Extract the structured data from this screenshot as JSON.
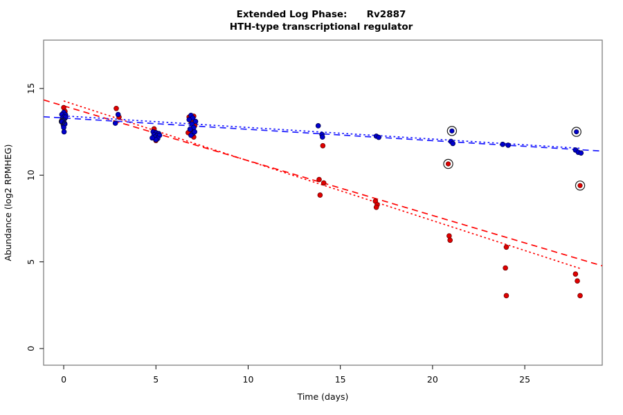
{
  "title": {
    "line1": "Extended Log Phase:      Rv2887",
    "line2": "HTH-type transcriptional regulator"
  },
  "chart_data": {
    "type": "scatter",
    "title": "Extended Log Phase: Rv2887",
    "subtitle": "HTH-type transcriptional regulator",
    "xlabel": "Time  (days)",
    "ylabel": "Abundance (log2 RPMHEG)",
    "x_ticks": [
      0,
      5,
      10,
      15,
      20,
      25
    ],
    "y_ticks": [
      0,
      5,
      10,
      15
    ],
    "xlim": [
      -1.09,
      29.2
    ],
    "ylim": [
      -0.96,
      17.79
    ],
    "grid": false,
    "legend": "none",
    "colors": {
      "red_point": "#e00000",
      "red_point_edge": "#6b0000",
      "blue_point": "#0000cd",
      "blue_point_edge": "#00004a",
      "red_line": "#ff0000",
      "blue_line": "#1a1aff",
      "outlier_ring": "#1a1a1a",
      "box": "#808080"
    },
    "series": [
      {
        "name": "red-points",
        "marker": "filled-circle",
        "color_key": "red_point",
        "points": [
          [
            0.0,
            13.9
          ],
          [
            0.07,
            13.68
          ],
          [
            2.85,
            13.85
          ],
          [
            3.0,
            13.35
          ],
          [
            4.9,
            12.67
          ],
          [
            5.0,
            12.0
          ],
          [
            6.8,
            13.35
          ],
          [
            7.05,
            13.4
          ],
          [
            6.9,
            13.1
          ],
          [
            7.1,
            12.85
          ],
          [
            6.75,
            12.45
          ],
          [
            7.05,
            12.2
          ],
          [
            6.95,
            12.6
          ],
          [
            14.05,
            11.7
          ],
          [
            13.85,
            9.75
          ],
          [
            14.1,
            9.55
          ],
          [
            13.9,
            8.85
          ],
          [
            16.9,
            8.5
          ],
          [
            17.0,
            8.3
          ],
          [
            16.95,
            8.15
          ],
          [
            20.9,
            6.5
          ],
          [
            20.95,
            6.25
          ],
          [
            24.0,
            5.85
          ],
          [
            23.95,
            4.65
          ],
          [
            24.0,
            3.05
          ],
          [
            27.75,
            4.3
          ],
          [
            27.85,
            3.9
          ],
          [
            28.0,
            3.05
          ]
        ]
      },
      {
        "name": "blue-points",
        "marker": "filled-circle",
        "color_key": "blue_point",
        "points": [
          [
            0.0,
            13.62
          ],
          [
            -0.1,
            13.5
          ],
          [
            0.1,
            13.48
          ],
          [
            0.02,
            13.38
          ],
          [
            -0.06,
            13.28
          ],
          [
            0.08,
            13.3
          ],
          [
            0.1,
            13.35
          ],
          [
            0.0,
            13.18
          ],
          [
            -0.1,
            13.08
          ],
          [
            0.04,
            13.0
          ],
          [
            -0.02,
            12.88
          ],
          [
            0.06,
            12.95
          ],
          [
            0.0,
            12.75
          ],
          [
            0.02,
            12.5
          ],
          [
            2.95,
            13.5
          ],
          [
            2.8,
            13.0
          ],
          [
            4.85,
            12.5
          ],
          [
            5.0,
            12.45
          ],
          [
            5.15,
            12.4
          ],
          [
            4.9,
            12.33
          ],
          [
            5.05,
            12.28
          ],
          [
            5.2,
            12.3
          ],
          [
            4.95,
            12.2
          ],
          [
            5.1,
            12.12
          ],
          [
            5.0,
            12.05
          ],
          [
            4.8,
            12.15
          ],
          [
            6.9,
            13.45
          ],
          [
            7.0,
            13.3
          ],
          [
            6.8,
            13.2
          ],
          [
            7.15,
            13.1
          ],
          [
            6.95,
            12.95
          ],
          [
            7.05,
            12.75
          ],
          [
            6.85,
            12.65
          ],
          [
            7.0,
            12.4
          ],
          [
            7.1,
            12.5
          ],
          [
            6.9,
            12.3
          ],
          [
            13.8,
            12.85
          ],
          [
            14.0,
            12.35
          ],
          [
            14.03,
            12.2
          ],
          [
            16.95,
            12.25
          ],
          [
            17.08,
            12.18
          ],
          [
            21.0,
            11.95
          ],
          [
            21.1,
            11.83
          ],
          [
            23.8,
            11.78
          ],
          [
            24.1,
            11.73
          ],
          [
            27.75,
            11.45
          ],
          [
            27.9,
            11.32
          ],
          [
            28.05,
            11.28
          ]
        ]
      },
      {
        "name": "red-circled-outliers",
        "marker": "circled-cross",
        "color_key": "red_point",
        "points": [
          [
            20.85,
            10.65
          ],
          [
            28.0,
            9.4
          ]
        ]
      },
      {
        "name": "blue-circled-outliers",
        "marker": "circled-cross",
        "color_key": "blue_point",
        "points": [
          [
            21.05,
            12.55
          ],
          [
            27.8,
            12.5
          ]
        ]
      },
      {
        "name": "open-circle-points",
        "marker": "open-circle",
        "color_key": "outlier_ring",
        "points": [
          [
            -0.08,
            13.1
          ]
        ]
      }
    ],
    "fit_lines": [
      {
        "name": "red-dashed-fit",
        "color_key": "red_line",
        "style": "dashed",
        "x1": -1.09,
        "y1": 14.34,
        "x2": 29.2,
        "y2": 4.77
      },
      {
        "name": "red-dotted-fit",
        "color_key": "red_line",
        "style": "dotted",
        "x1": 0,
        "y1": 14.28,
        "x2": 28,
        "y2": 4.62
      },
      {
        "name": "blue-dashed-fit",
        "color_key": "blue_line",
        "style": "dashed",
        "x1": -1.09,
        "y1": 13.37,
        "x2": 29.2,
        "y2": 11.39
      },
      {
        "name": "blue-dotted-fit",
        "color_key": "blue_line",
        "style": "dotted",
        "x1": 0,
        "y1": 13.42,
        "x2": 28,
        "y2": 11.55
      }
    ]
  }
}
